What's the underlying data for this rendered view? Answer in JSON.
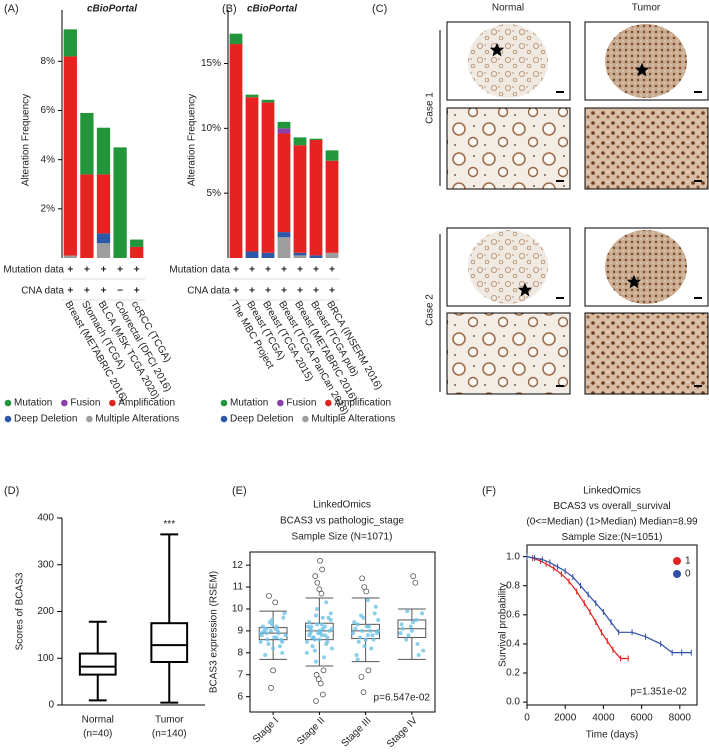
{
  "chart_data": [
    {
      "type": "stacked_bar",
      "panel_label": "(A)",
      "title": "cBioPortal",
      "y_label": "Alteration Frequency",
      "categories": [
        "Breast (METABRIC 2016)",
        "Stomach (TCGA)",
        "BLCA (MSK TCGA 2020)",
        "Colorectal (DFCI 2016)",
        "ccRCC (TCGA)"
      ],
      "series": [
        {
          "name": "Mutation",
          "color": "#23953b",
          "values": [
            1.1,
            2.5,
            1.9,
            4.5,
            0.3
          ]
        },
        {
          "name": "Fusion",
          "color": "#8b3fa8",
          "values": [
            0,
            0,
            0,
            0,
            0
          ]
        },
        {
          "name": "Amplification",
          "color": "#e52421",
          "values": [
            8.1,
            3.4,
            2.4,
            0,
            0.45
          ]
        },
        {
          "name": "Deep Deletion",
          "color": "#2c58a8",
          "values": [
            0,
            0,
            0.4,
            0,
            0
          ]
        },
        {
          "name": "Multiple Alterations",
          "color": "#9e9e9e",
          "values": [
            0.1,
            0,
            0.6,
            0,
            0
          ]
        }
      ],
      "ylim": [
        0,
        9.6
      ],
      "yticks": [
        {
          "value": 2,
          "label": "2%"
        },
        {
          "value": 4,
          "label": "4%"
        },
        {
          "value": 6,
          "label": "6%"
        },
        {
          "value": 8,
          "label": "8%"
        }
      ],
      "annotation_rows": [
        {
          "name": "Mutation data",
          "marks": [
            "+",
            "+",
            "+",
            "+",
            "+"
          ]
        },
        {
          "name": "CNA data",
          "marks": [
            "+",
            "+",
            "+",
            "−",
            "+"
          ]
        }
      ]
    },
    {
      "type": "stacked_bar",
      "panel_label": "(B)",
      "title": "cBioPortal",
      "y_label": "Alteration Frequency",
      "categories": [
        "The MBC Project",
        "Breast (TCGA)",
        "Breast (TCGA 2015)",
        "Breast (TCGA PanCan 2018)",
        "Breast (METABRIC 2016)",
        "Breast (TCGA pub)",
        "BRCA (INSERM 2016)"
      ],
      "series": [
        {
          "name": "Mutation",
          "color": "#23953b",
          "values": [
            0.8,
            0.2,
            0.2,
            0.5,
            0.6,
            0.1,
            0.8
          ]
        },
        {
          "name": "Fusion",
          "color": "#8b3fa8",
          "values": [
            0,
            0,
            0,
            0.4,
            0,
            0,
            0
          ]
        },
        {
          "name": "Amplification",
          "color": "#e52421",
          "values": [
            16.5,
            11.9,
            11.6,
            7.6,
            8.3,
            8.9,
            7.1
          ]
        },
        {
          "name": "Deep Deletion",
          "color": "#2c58a8",
          "values": [
            0,
            0.5,
            0.4,
            0.4,
            0.2,
            0.2,
            0
          ]
        },
        {
          "name": "Multiple Alterations",
          "color": "#9e9e9e",
          "values": [
            0,
            0,
            0,
            1.6,
            0.2,
            0,
            0.4
          ]
        }
      ],
      "ylim": [
        0,
        18.2
      ],
      "yticks": [
        {
          "value": 5,
          "label": "5%"
        },
        {
          "value": 10,
          "label": "10%"
        },
        {
          "value": 15,
          "label": "15%"
        }
      ],
      "annotation_rows": [
        {
          "name": "Mutation data",
          "marks": [
            "+",
            "+",
            "+",
            "+",
            "+",
            "+",
            "+"
          ]
        },
        {
          "name": "CNA data",
          "marks": [
            "+",
            "+",
            "+",
            "+",
            "+",
            "+",
            "+"
          ]
        }
      ]
    },
    {
      "type": "box",
      "panel_label": "(D)",
      "y_label": "Scores of BCAS3",
      "categories": [
        "Normal",
        "Tumor"
      ],
      "sample_sizes": [
        "(n=40)",
        "(n=140)"
      ],
      "boxes": [
        {
          "min": 10,
          "q1": 65,
          "median": 82,
          "q3": 110,
          "max": 178
        },
        {
          "min": 5,
          "q1": 92,
          "median": 128,
          "q3": 175,
          "max": 365
        }
      ],
      "significance": "***",
      "ylim": [
        0,
        400
      ],
      "yticks": [
        0,
        100,
        200,
        300,
        400
      ]
    },
    {
      "type": "box_points",
      "panel_label": "(E)",
      "title_lines": [
        "LinkedOmics",
        "BCAS3 vs pathologic_stage",
        "Sample Size (N=1071)"
      ],
      "y_label": "BCAS3 expression (RSEM)",
      "p_value_text": "p=6.547e-02",
      "categories": [
        "Stage I",
        "Stage II",
        "Stage III",
        "Stage IV"
      ],
      "boxes": [
        {
          "min": 7.7,
          "q1": 8.6,
          "median": 8.9,
          "q3": 9.15,
          "max": 9.9
        },
        {
          "min": 7.4,
          "q1": 8.6,
          "median": 9.0,
          "q3": 9.35,
          "max": 10.5
        },
        {
          "min": 7.6,
          "q1": 8.65,
          "median": 9.0,
          "q3": 9.3,
          "max": 10.5
        },
        {
          "min": 7.7,
          "q1": 8.7,
          "median": 9.1,
          "q3": 9.5,
          "max": 10.0
        }
      ],
      "points": [
        [
          8.9,
          8.7,
          9.1,
          8.5,
          9.3,
          8.8,
          9.0,
          8.6,
          9.6,
          8.2,
          9.2,
          8.9,
          8.4,
          9.8,
          8.7,
          9.0,
          8.3,
          9.4,
          8.8,
          9.1,
          7.9,
          8.6,
          9.0,
          8.5,
          9.2,
          8.9,
          8.0,
          9.5
        ],
        [
          9.0,
          8.8,
          9.2,
          8.6,
          9.5,
          8.9,
          9.1,
          8.4,
          9.7,
          8.2,
          9.3,
          9.0,
          8.7,
          10.0,
          8.5,
          9.1,
          8.3,
          9.6,
          8.9,
          9.2,
          7.8,
          8.7,
          9.0,
          8.6,
          9.4,
          8.8,
          8.1,
          9.8,
          9.0,
          8.9,
          10.3,
          7.6,
          9.1,
          8.8,
          9.2,
          8.5,
          9.3,
          8.0,
          9.6,
          8.7
        ],
        [
          9.0,
          8.8,
          9.3,
          8.6,
          9.6,
          8.9,
          9.2,
          8.5,
          9.8,
          8.3,
          9.4,
          9.0,
          8.7,
          10.1,
          8.6,
          9.1,
          8.2,
          9.7,
          8.9,
          9.2,
          7.9,
          8.8,
          9.0,
          9.5,
          10.4,
          7.7
        ],
        [
          9.2,
          8.9,
          9.5,
          8.6,
          9.8,
          9.0,
          9.3,
          8.4,
          9.9,
          8.1,
          9.4,
          9.1,
          7.9,
          8.8
        ]
      ],
      "outliers": [
        [
          10.6,
          6.4,
          7.2,
          10.3
        ],
        [
          12.2,
          11.8,
          11.5,
          11.2,
          10.9,
          10.7,
          7.2,
          7.0,
          6.8,
          6.6,
          6.1,
          5.8
        ],
        [
          11.4,
          11.0,
          10.8,
          7.2,
          6.9,
          6.2
        ],
        [
          11.5,
          11.2
        ]
      ],
      "ylim": [
        5.3,
        12.6
      ],
      "yticks": [
        6,
        7,
        8,
        9,
        10,
        11,
        12
      ]
    },
    {
      "type": "survival",
      "panel_label": "(F)",
      "title_lines": [
        "LinkedOmics",
        "BCAS3 vs overall_survival",
        "(0<=Median) (1>Median) Median=8.99",
        "Sample Size:(N=1051)"
      ],
      "x_label": "Time (days)",
      "y_label": "Survival probability",
      "p_value_text": "p=1.351e-02",
      "legend": "top-right",
      "series": [
        {
          "name": "1",
          "color": "#e52421",
          "x": [
            0,
            300,
            700,
            1000,
            1400,
            1800,
            2200,
            2600,
            3000,
            3300,
            3600,
            3900,
            4200,
            4500,
            4900,
            5300
          ],
          "values": [
            1,
            0.99,
            0.97,
            0.95,
            0.92,
            0.88,
            0.83,
            0.76,
            0.68,
            0.62,
            0.55,
            0.48,
            0.42,
            0.36,
            0.3,
            0.3
          ]
        },
        {
          "name": "0",
          "color": "#2f4fa8",
          "x": [
            0,
            400,
            800,
            1200,
            1600,
            2000,
            2400,
            2800,
            3200,
            3600,
            4000,
            4400,
            4800,
            5500,
            6200,
            7000,
            7600,
            8100,
            8600
          ],
          "values": [
            1,
            0.99,
            0.98,
            0.96,
            0.93,
            0.9,
            0.86,
            0.8,
            0.74,
            0.68,
            0.62,
            0.55,
            0.48,
            0.48,
            0.45,
            0.4,
            0.34,
            0.34,
            0.34
          ]
        }
      ],
      "xlim": [
        0,
        8900
      ],
      "xticks": [
        0,
        2000,
        4000,
        6000,
        8000
      ],
      "ylim": [
        -0.02,
        1.08
      ],
      "yticks": [
        {
          "value": 0,
          "label": "0.0"
        },
        {
          "value": 0.2,
          "label": "0.2"
        },
        {
          "value": 0.4,
          "label": "0.4"
        },
        {
          "value": 0.6,
          "label": "0.6"
        },
        {
          "value": 0.8,
          "label": "0.8"
        },
        {
          "value": 1,
          "label": "1.0"
        }
      ]
    }
  ],
  "image_panel": {
    "panel_label": "(C)",
    "columns": [
      "Normal",
      "Tumor"
    ],
    "rows": [
      "Case 1",
      "Case 2"
    ]
  }
}
